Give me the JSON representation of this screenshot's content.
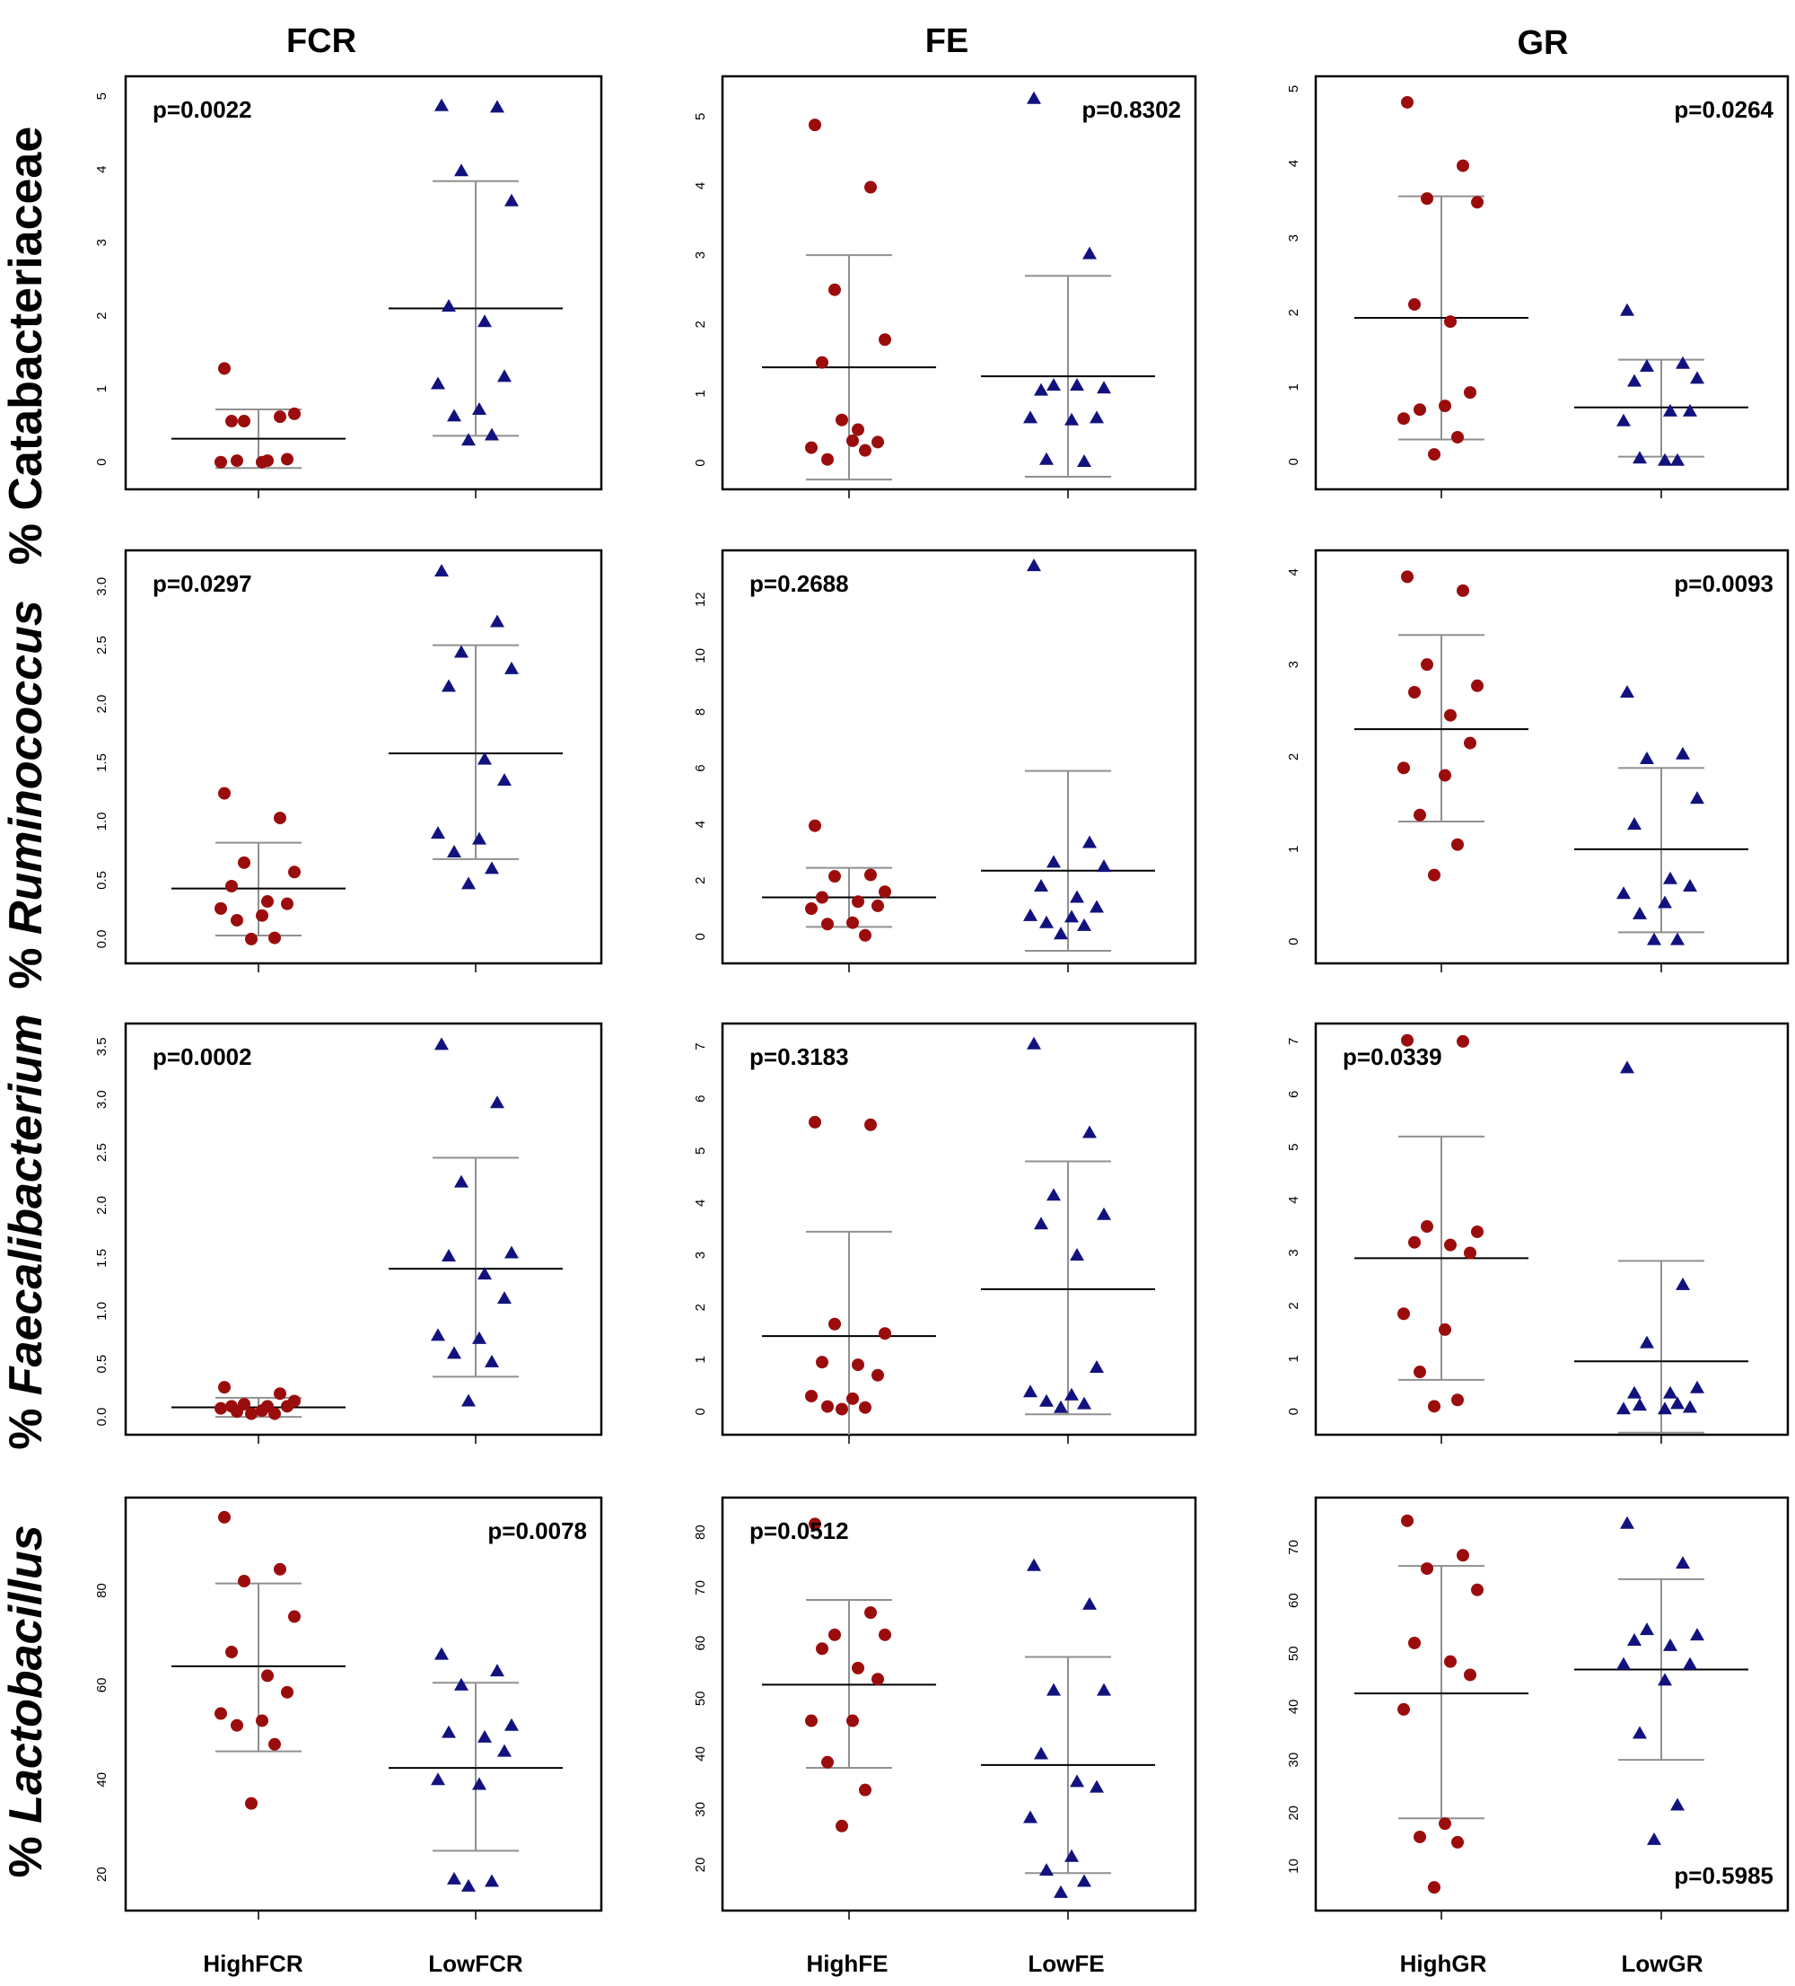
{
  "colors": {
    "high": "#9b0d0d",
    "low": "#12127f",
    "whisker": "#909090",
    "mean": "#000000"
  },
  "col_titles": [
    "FCR",
    "FE",
    "GR"
  ],
  "row_labels": [
    {
      "prefix": "% ",
      "taxon": "Catabacteriaceae",
      "italic": false
    },
    {
      "prefix": "% ",
      "taxon": "Ruminococcus",
      "italic": true
    },
    {
      "prefix": "% ",
      "taxon": "Faecalibacterium",
      "italic": true
    },
    {
      "prefix": "% ",
      "taxon": "Lactobacillus",
      "italic": true
    }
  ],
  "group_labels": [
    [
      "HighFCR",
      "LowFCR"
    ],
    [
      "HighFE",
      "LowFE"
    ],
    [
      "HighGR",
      "LowGR"
    ]
  ],
  "chart_data": [
    {
      "type": "scatter",
      "row": 0,
      "col": 0,
      "pvalue": "p=0.0022",
      "pvalue_pos": "top-left",
      "ylim": [
        -0.2,
        5.1
      ],
      "yticks": [
        0,
        1,
        2,
        3,
        4,
        5
      ],
      "yticklabels": [
        "0",
        "1",
        "2",
        "3",
        "4",
        "5"
      ],
      "groups": [
        {
          "name": "HighFCR",
          "mean": 0.32,
          "sd_low": -0.08,
          "sd_high": 0.72,
          "values": [
            1.28,
            0.62,
            0.56,
            0.66,
            0.56,
            0.02,
            0.04,
            0.0,
            0.0,
            0.02
          ]
        },
        {
          "name": "LowFCR",
          "mean": 2.1,
          "sd_low": 0.36,
          "sd_high": 3.84,
          "values": [
            4.87,
            4.85,
            3.98,
            3.57,
            2.13,
            1.92,
            1.17,
            1.07,
            0.72,
            0.63,
            0.37,
            0.3
          ]
        }
      ]
    },
    {
      "type": "scatter",
      "row": 0,
      "col": 1,
      "pvalue": "p=0.8302",
      "pvalue_pos": "top-right",
      "ylim": [
        -0.2,
        5.4
      ],
      "yticks": [
        0,
        1,
        2,
        3,
        4,
        5
      ],
      "yticklabels": [
        "0",
        "1",
        "2",
        "3",
        "4",
        "5"
      ],
      "groups": [
        {
          "name": "HighFE",
          "mean": 1.38,
          "sd_low": -0.24,
          "sd_high": 3.0,
          "values": [
            4.88,
            3.98,
            2.5,
            1.78,
            1.45,
            0.48,
            0.3,
            0.22,
            0.32,
            0.05,
            0.18,
            0.62
          ]
        },
        {
          "name": "LowFE",
          "mean": 1.25,
          "sd_low": -0.2,
          "sd_high": 2.7,
          "values": [
            5.26,
            3.02,
            1.12,
            1.08,
            1.05,
            1.12,
            0.65,
            0.65,
            0.62,
            0.05,
            0.02
          ]
        }
      ]
    },
    {
      "type": "scatter",
      "row": 0,
      "col": 2,
      "pvalue": "p=0.0264",
      "pvalue_pos": "top-right",
      "ylim": [
        -0.2,
        5.0
      ],
      "yticks": [
        0,
        1,
        2,
        3,
        4,
        5
      ],
      "yticklabels": [
        "0",
        "1",
        "2",
        "3",
        "4",
        "5"
      ],
      "groups": [
        {
          "name": "HighGR",
          "mean": 1.93,
          "sd_low": 0.3,
          "sd_high": 3.56,
          "values": [
            4.82,
            3.97,
            3.53,
            3.48,
            2.11,
            1.88,
            0.93,
            0.58,
            0.75,
            0.7,
            0.33,
            0.1
          ]
        },
        {
          "name": "LowGR",
          "mean": 0.73,
          "sd_low": 0.07,
          "sd_high": 1.37,
          "values": [
            2.03,
            1.32,
            1.28,
            1.12,
            1.08,
            0.68,
            0.68,
            0.55,
            0.02,
            0.05,
            0.02
          ]
        }
      ]
    },
    {
      "type": "scatter",
      "row": 1,
      "col": 0,
      "pvalue": "p=0.0297",
      "pvalue_pos": "top-left",
      "ylim": [
        -0.1,
        3.2
      ],
      "yticks": [
        0,
        0.5,
        1,
        1.5,
        2,
        2.5,
        3
      ],
      "yticklabels": [
        "0.0",
        "0.5",
        "1.0",
        "1.5",
        "2.0",
        "2.5",
        "3.0"
      ],
      "groups": [
        {
          "name": "HighFCR",
          "mean": 0.43,
          "sd_low": 0.03,
          "sd_high": 0.82,
          "values": [
            1.24,
            1.03,
            0.65,
            0.57,
            0.45,
            0.32,
            0.3,
            0.26,
            0.2,
            0.16,
            0.01,
            0.0
          ]
        },
        {
          "name": "LowFCR",
          "mean": 1.58,
          "sd_low": 0.68,
          "sd_high": 2.5,
          "values": [
            3.13,
            2.7,
            2.44,
            2.3,
            2.15,
            1.53,
            1.35,
            0.9,
            0.85,
            0.74,
            0.6,
            0.47
          ]
        }
      ]
    },
    {
      "type": "scatter",
      "row": 1,
      "col": 1,
      "pvalue": "p=0.2688",
      "pvalue_pos": "top-left",
      "ylim": [
        -0.5,
        13.3
      ],
      "yticks": [
        0,
        2,
        4,
        6,
        8,
        10,
        12
      ],
      "yticklabels": [
        "0",
        "2",
        "4",
        "6",
        "8",
        "10",
        "12"
      ],
      "groups": [
        {
          "name": "HighFE",
          "mean": 1.4,
          "sd_low": 0.35,
          "sd_high": 2.45,
          "values": [
            3.95,
            2.2,
            2.15,
            1.6,
            1.4,
            1.25,
            1.1,
            1.0,
            0.5,
            0.45,
            0.05
          ]
        },
        {
          "name": "LowFE",
          "mean": 2.35,
          "sd_low": -0.5,
          "sd_high": 5.9,
          "values": [
            13.2,
            3.35,
            2.65,
            2.5,
            1.8,
            1.4,
            1.05,
            0.75,
            0.7,
            0.5,
            0.4,
            0.1
          ]
        }
      ]
    },
    {
      "type": "scatter",
      "row": 1,
      "col": 2,
      "pvalue": "p=0.0093",
      "pvalue_pos": "top-right",
      "ylim": [
        -0.1,
        4.1
      ],
      "yticks": [
        0,
        1,
        2,
        3,
        4
      ],
      "yticklabels": [
        "0",
        "1",
        "2",
        "3",
        "4"
      ],
      "groups": [
        {
          "name": "HighGR",
          "mean": 2.3,
          "sd_low": 1.3,
          "sd_high": 3.32,
          "values": [
            3.95,
            3.8,
            3.0,
            2.77,
            2.7,
            2.45,
            2.15,
            1.88,
            1.8,
            1.37,
            1.05,
            0.72
          ]
        },
        {
          "name": "LowGR",
          "mean": 1.0,
          "sd_low": 0.1,
          "sd_high": 1.88,
          "values": [
            2.7,
            2.03,
            1.98,
            1.55,
            1.27,
            0.68,
            0.6,
            0.52,
            0.42,
            0.3,
            0.02,
            0.02
          ]
        }
      ]
    },
    {
      "type": "scatter",
      "row": 2,
      "col": 0,
      "pvalue": "p=0.0002",
      "pvalue_pos": "top-left",
      "ylim": [
        -0.05,
        3.6
      ],
      "yticks": [
        0,
        0.5,
        1,
        1.5,
        2,
        2.5,
        3,
        3.5
      ],
      "yticklabels": [
        "0.0",
        "0.5",
        "1.0",
        "1.5",
        "2.0",
        "2.5",
        "3.0",
        "3.5"
      ],
      "groups": [
        {
          "name": "HighFCR",
          "mean": 0.09,
          "sd_low": 0.0,
          "sd_high": 0.18,
          "values": [
            0.28,
            0.22,
            0.12,
            0.15,
            0.1,
            0.1,
            0.1,
            0.08,
            0.06,
            0.05,
            0.03,
            0.03
          ]
        },
        {
          "name": "LowFCR",
          "mean": 1.4,
          "sd_low": 0.38,
          "sd_high": 2.45,
          "values": [
            3.52,
            2.97,
            2.22,
            1.55,
            1.52,
            1.35,
            1.12,
            0.77,
            0.74,
            0.6,
            0.52,
            0.15
          ]
        }
      ]
    },
    {
      "type": "scatter",
      "row": 2,
      "col": 1,
      "pvalue": "p=0.3183",
      "pvalue_pos": "top-left",
      "ylim": [
        -0.2,
        7.2
      ],
      "yticks": [
        0,
        1,
        2,
        3,
        4,
        5,
        6,
        7
      ],
      "yticklabels": [
        "0",
        "1",
        "2",
        "3",
        "4",
        "5",
        "6",
        "7"
      ],
      "groups": [
        {
          "name": "HighFE",
          "mean": 1.45,
          "sd_low": -0.5,
          "sd_high": 3.45,
          "values": [
            5.55,
            5.5,
            1.68,
            1.5,
            0.95,
            0.9,
            0.7,
            0.3,
            0.25,
            0.1,
            0.08,
            0.05
          ]
        },
        {
          "name": "LowFE",
          "mean": 2.35,
          "sd_low": -0.05,
          "sd_high": 4.8,
          "values": [
            7.05,
            5.35,
            4.15,
            3.78,
            3.6,
            3.0,
            0.85,
            0.38,
            0.32,
            0.2,
            0.15,
            0.08
          ]
        }
      ]
    },
    {
      "type": "scatter",
      "row": 2,
      "col": 2,
      "pvalue": "p=0.0339",
      "pvalue_pos": "top-left",
      "ylim": [
        -0.2,
        7.1
      ],
      "yticks": [
        0,
        1,
        2,
        3,
        4,
        5,
        6,
        7
      ],
      "yticklabels": [
        "0",
        "1",
        "2",
        "3",
        "4",
        "5",
        "6",
        "7"
      ],
      "groups": [
        {
          "name": "HighGR",
          "mean": 2.9,
          "sd_low": 0.6,
          "sd_high": 5.2,
          "values": [
            7.02,
            7.0,
            3.5,
            3.4,
            3.2,
            3.15,
            3.0,
            1.85,
            1.55,
            0.75,
            0.22,
            0.1
          ]
        },
        {
          "name": "LowGR",
          "mean": 0.95,
          "sd_low": -0.4,
          "sd_high": 2.85,
          "values": [
            6.5,
            2.4,
            1.3,
            0.45,
            0.35,
            0.35,
            0.08,
            0.05,
            0.05,
            0.12,
            0.15
          ]
        }
      ]
    },
    {
      "type": "scatter",
      "row": 3,
      "col": 0,
      "pvalue": "p=0.0078",
      "pvalue_pos": "top-right",
      "ylim": [
        15,
        97
      ],
      "yticks": [
        20,
        40,
        60,
        80
      ],
      "yticklabels": [
        "20",
        "40",
        "60",
        "80"
      ],
      "groups": [
        {
          "name": "HighFCR",
          "mean": 64,
          "sd_low": 46,
          "sd_high": 81.5,
          "values": [
            95.5,
            84.5,
            82,
            74.5,
            67,
            62,
            58.5,
            54,
            52.5,
            51.5,
            47.5,
            35
          ]
        },
        {
          "name": "LowFCR",
          "mean": 42.5,
          "sd_low": 25,
          "sd_high": 60.5,
          "values": [
            66.5,
            63,
            60,
            51.5,
            50,
            49,
            46,
            40,
            39,
            19,
            18.5,
            17.5
          ]
        }
      ]
    },
    {
      "type": "scatter",
      "row": 3,
      "col": 1,
      "pvalue": "p=0.0512",
      "pvalue_pos": "top-left",
      "ylim": [
        14,
        84
      ],
      "yticks": [
        20,
        30,
        40,
        50,
        60,
        70,
        80
      ],
      "yticklabels": [
        "20",
        "30",
        "40",
        "50",
        "60",
        "70",
        "80"
      ],
      "groups": [
        {
          "name": "HighFE",
          "mean": 52.5,
          "sd_low": 37.5,
          "sd_high": 67.8,
          "values": [
            81.5,
            65.5,
            61.5,
            61.5,
            59,
            55.5,
            53.5,
            46,
            46,
            38.5,
            33.5,
            27
          ]
        },
        {
          "name": "LowFE",
          "mean": 38,
          "sd_low": 18.5,
          "sd_high": 57.5,
          "values": [
            74,
            67,
            51.5,
            51.5,
            40,
            35,
            34,
            28.5,
            21.5,
            19,
            17,
            15
          ]
        }
      ]
    },
    {
      "type": "scatter",
      "row": 3,
      "col": 2,
      "pvalue": "p=0.5985",
      "pvalue_pos": "bottom-right",
      "ylim": [
        4,
        77
      ],
      "yticks": [
        10,
        20,
        30,
        40,
        50,
        60,
        70
      ],
      "yticklabels": [
        "10",
        "20",
        "30",
        "40",
        "50",
        "60",
        "70"
      ],
      "groups": [
        {
          "name": "HighGR",
          "mean": 42.5,
          "sd_low": 19,
          "sd_high": 66.5,
          "values": [
            75,
            68.5,
            66,
            62,
            52,
            48.5,
            46,
            39.5,
            18,
            15.5,
            14.5,
            6
          ]
        },
        {
          "name": "LowGR",
          "mean": 47,
          "sd_low": 30,
          "sd_high": 64,
          "values": [
            74.5,
            67,
            54.5,
            53.5,
            52.5,
            51.5,
            48,
            48,
            45,
            35,
            21.5,
            15
          ]
        }
      ]
    }
  ]
}
